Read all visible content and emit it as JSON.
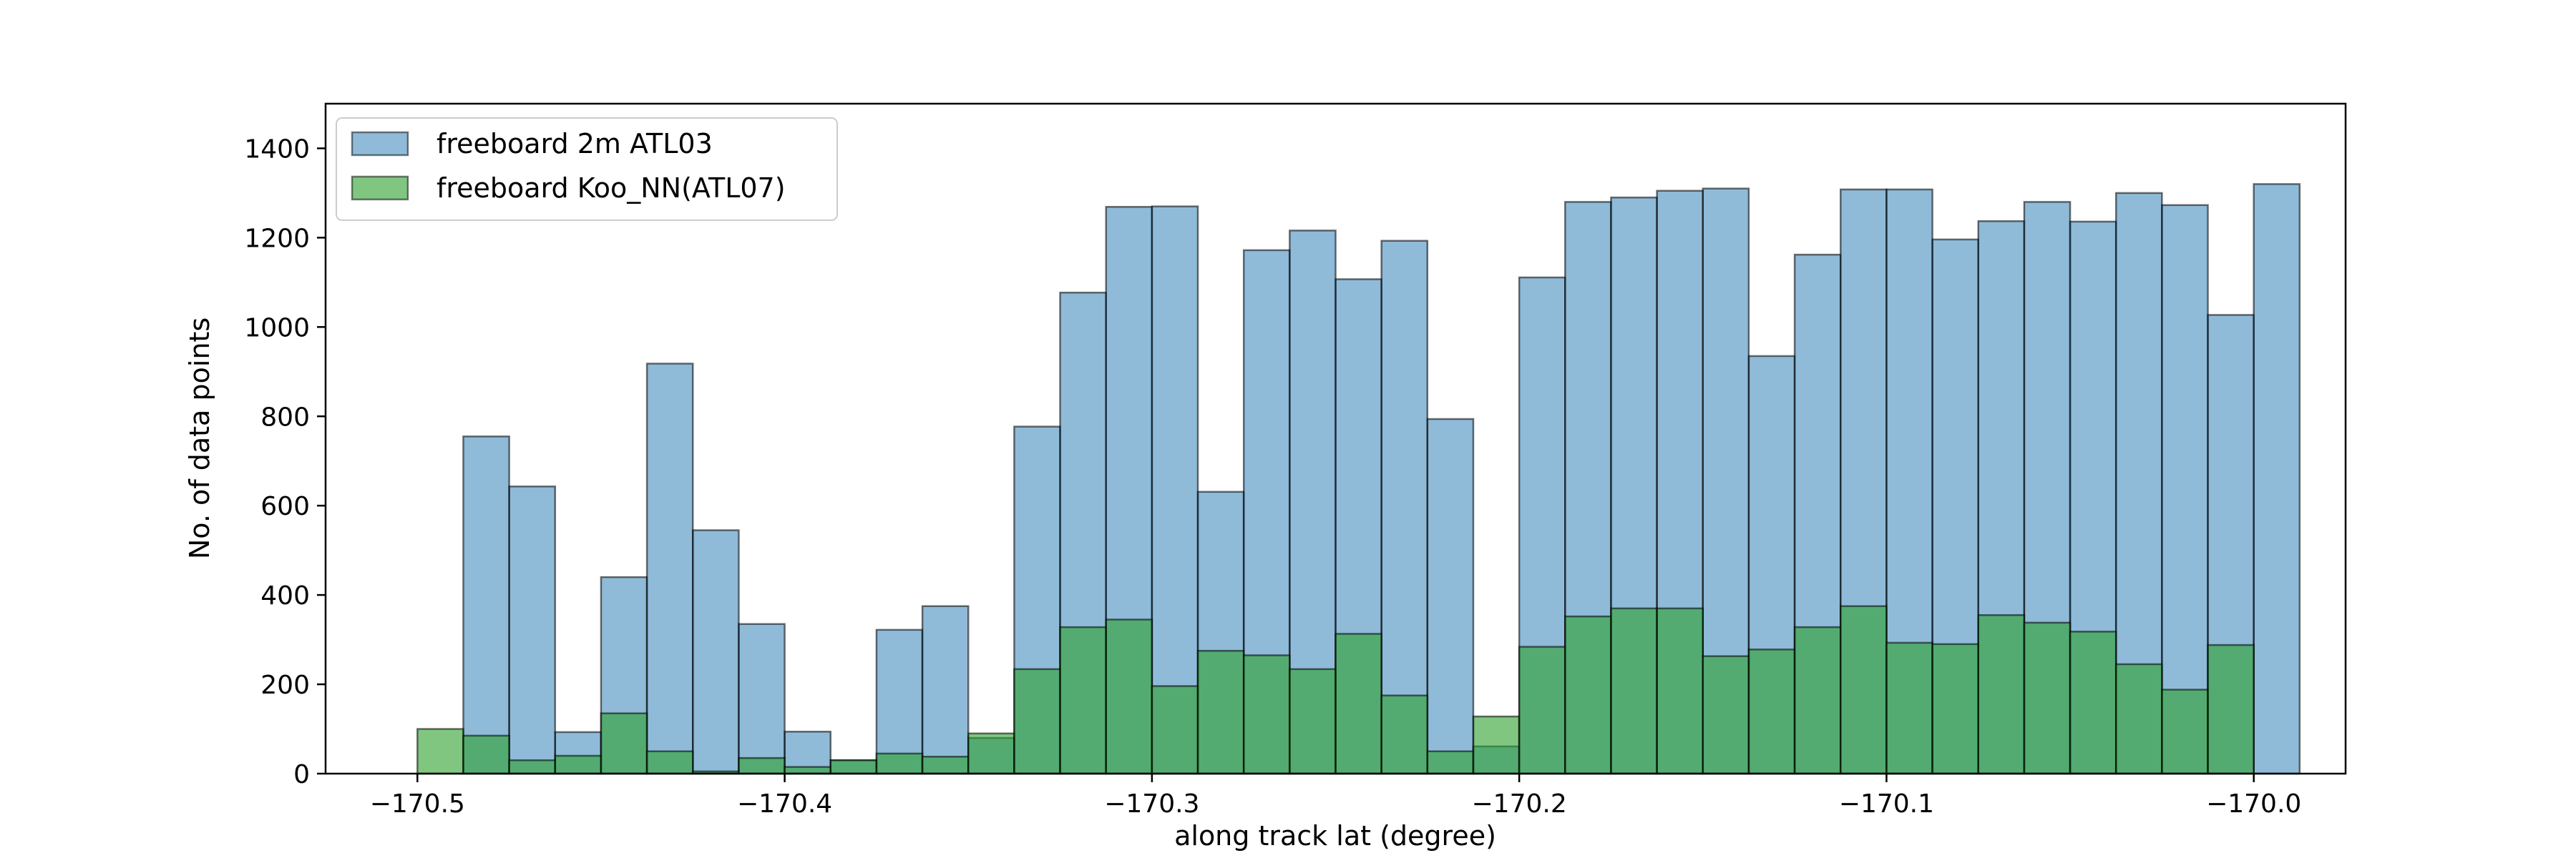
{
  "chart_data": {
    "type": "bar",
    "title": "",
    "xlabel": "along track lat (degree)",
    "ylabel": "No. of data points",
    "xlim": [
      -170.525,
      -169.975
    ],
    "ylim": [
      0,
      1500
    ],
    "xticks": [
      -170.5,
      -170.4,
      -170.3,
      -170.2,
      -170.1,
      -170.0
    ],
    "xtick_labels": [
      "−170.5",
      "−170.4",
      "−170.3",
      "−170.2",
      "−170.1",
      "−170.0"
    ],
    "yticks": [
      0,
      200,
      400,
      600,
      800,
      1000,
      1200,
      1400
    ],
    "ytick_labels": [
      "0",
      "200",
      "400",
      "600",
      "800",
      "1000",
      "1200",
      "1400"
    ],
    "grid": false,
    "legend_position": "top-left",
    "series": [
      {
        "name": "freeboard 2m ATL03",
        "color": "#1f77b4",
        "bin_start": -170.4875,
        "bin_width": 0.0125,
        "values": [
          755,
          643,
          93,
          440,
          918,
          545,
          335,
          94,
          30,
          322,
          375,
          80,
          777,
          1077,
          1269,
          1270,
          631,
          1172,
          1216,
          1107,
          1193,
          794,
          61,
          1111,
          1280,
          1290,
          1305,
          1310,
          935,
          1162,
          1308,
          1308,
          1196,
          1237,
          1280,
          1236,
          1300,
          1273,
          1027,
          1320
        ]
      },
      {
        "name": "freeboard Koo_NN(ATL07)",
        "color": "#2ca02c",
        "bin_start": -170.5,
        "bin_width": 0.0125,
        "values": [
          100,
          85,
          30,
          40,
          135,
          50,
          5,
          35,
          15,
          30,
          45,
          38,
          90,
          234,
          328,
          345,
          196,
          275,
          265,
          234,
          313,
          175,
          50,
          128,
          284,
          352,
          370,
          370,
          263,
          278,
          328,
          375,
          293,
          290,
          355,
          338,
          318,
          245,
          188,
          288
        ]
      }
    ]
  }
}
